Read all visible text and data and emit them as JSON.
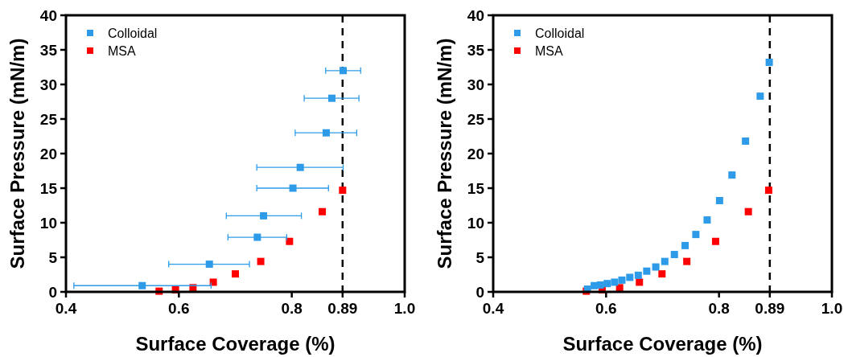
{
  "chart_data": [
    {
      "type": "scatter",
      "xlabel": "Surface Coverage (%)",
      "ylabel": "Surface Pressure (mN/m)",
      "xlim": [
        0.4,
        1.0
      ],
      "ylim": [
        0,
        40
      ],
      "xticks": [
        0.4,
        0.6,
        0.8,
        0.89,
        {
          "value": 1.0,
          "label": "1.0"
        }
      ],
      "yticks": [
        0,
        5,
        10,
        15,
        20,
        25,
        30,
        35,
        40
      ],
      "marker": "square",
      "legend": "top left",
      "grid": false,
      "ref_lines": [
        {
          "axis": "x",
          "value": 0.89,
          "line_style": "dashed",
          "color": "#000000"
        }
      ],
      "series": [
        {
          "name": "Colloidal",
          "color": "#2e9be8",
          "x": [
            0.891,
            0.871,
            0.861,
            0.815,
            0.802,
            0.75,
            0.739,
            0.654,
            0.535
          ],
          "values": [
            32.0,
            28.0,
            23.0,
            18.0,
            15.0,
            11.0,
            7.9,
            4.0,
            0.9
          ],
          "xerrors": [
            [
              0.86,
              0.922
            ],
            [
              0.822,
              0.919
            ],
            [
              0.806,
              0.915
            ],
            [
              0.738,
              0.891
            ],
            [
              0.738,
              0.865
            ],
            [
              0.684,
              0.817
            ],
            [
              0.687,
              0.791
            ],
            [
              0.582,
              0.725
            ],
            [
              0.414,
              0.657
            ]
          ]
        },
        {
          "name": "MSA",
          "color": "#ff0000",
          "x": [
            0.565,
            0.594,
            0.625,
            0.661,
            0.7,
            0.745,
            0.796,
            0.854,
            0.89
          ],
          "values": [
            0.1,
            0.3,
            0.6,
            1.4,
            2.6,
            4.4,
            7.3,
            11.6,
            14.7
          ]
        }
      ]
    },
    {
      "type": "scatter",
      "xlabel": "Surface Coverage (%)",
      "ylabel": "Surface Pressure (mN/m)",
      "xlim": [
        0.4,
        1.0
      ],
      "ylim": [
        0,
        40
      ],
      "xticks": [
        0.4,
        0.6,
        0.8,
        0.89,
        {
          "value": 1.0,
          "label": "1.0"
        }
      ],
      "yticks": [
        0,
        5,
        10,
        15,
        20,
        25,
        30,
        35,
        40
      ],
      "marker": "square",
      "legend": "top left",
      "grid": false,
      "ref_lines": [
        {
          "axis": "x",
          "value": 0.89,
          "line_style": "dashed",
          "color": "#000000"
        }
      ],
      "series": [
        {
          "name": "Colloidal",
          "color": "#2e9be8",
          "x": [
            0.567,
            0.579,
            0.59,
            0.602,
            0.615,
            0.628,
            0.642,
            0.657,
            0.672,
            0.688,
            0.704,
            0.721,
            0.74,
            0.759,
            0.779,
            0.801,
            0.823,
            0.847,
            0.873,
            0.889
          ],
          "values": [
            0.4,
            0.9,
            1.0,
            1.2,
            1.4,
            1.7,
            2.1,
            2.4,
            3.0,
            3.6,
            4.4,
            5.4,
            6.7,
            8.3,
            10.4,
            13.2,
            16.9,
            21.8,
            28.3,
            33.2
          ]
        },
        {
          "name": "MSA",
          "color": "#ff0000",
          "x": [
            0.565,
            0.593,
            0.624,
            0.659,
            0.699,
            0.743,
            0.794,
            0.852,
            0.888
          ],
          "values": [
            0.1,
            0.3,
            0.6,
            1.4,
            2.6,
            4.4,
            7.3,
            11.6,
            14.7
          ]
        }
      ]
    }
  ]
}
